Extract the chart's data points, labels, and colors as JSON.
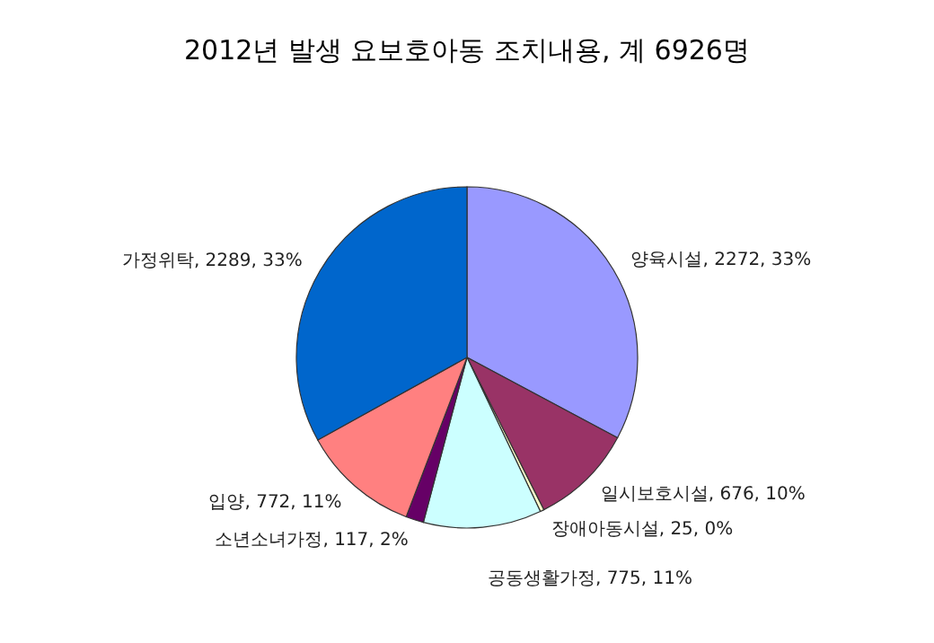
{
  "chart_data": {
    "type": "pie",
    "title": "2012년 발생 요보호아동 조치내용, 계 6926명",
    "categories": [
      "양육시설",
      "일시보호시설",
      "장애아동시설",
      "공동생활가정",
      "소년소녀가정",
      "입양",
      "가정위탁"
    ],
    "values": [
      2272,
      676,
      25,
      775,
      117,
      772,
      2289
    ],
    "value_labels": [
      "2272, 33%",
      "676, 10%",
      "25, 0%",
      "775, 11%",
      "117, 2%",
      "772, 11%",
      "2289, 33%"
    ],
    "colors": [
      "#9999ff",
      "#993366",
      "#ffffcc",
      "#ccffff",
      "#660066",
      "#ff8080",
      "#0066cc"
    ]
  }
}
